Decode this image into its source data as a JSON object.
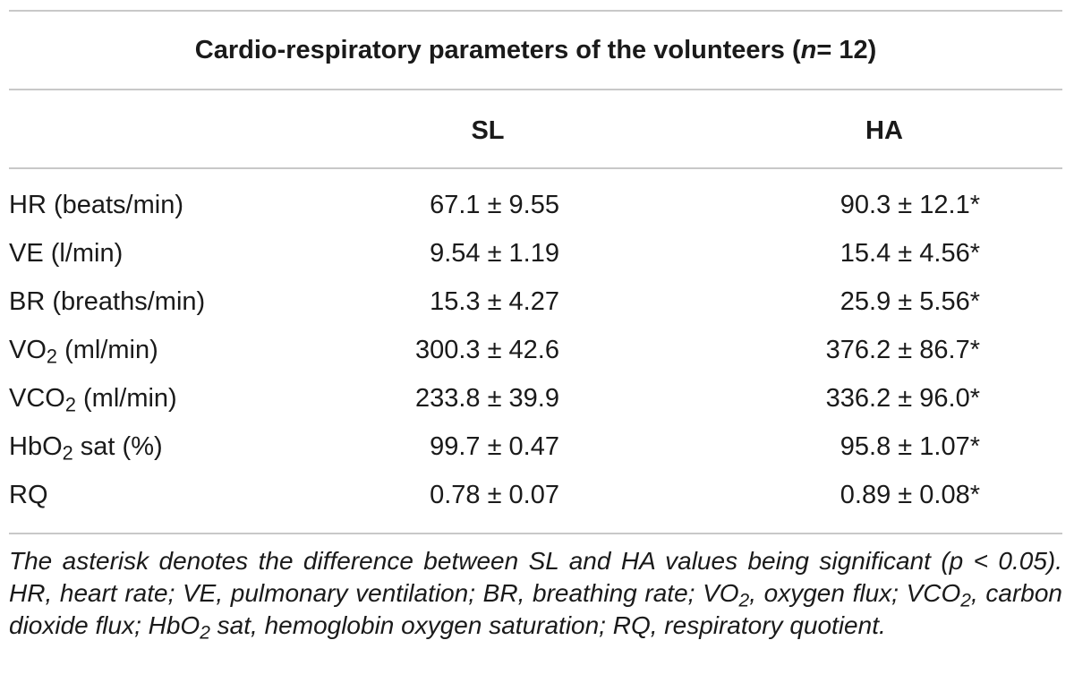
{
  "table": {
    "title": "Cardio-respiratory parameters of the volunteers (",
    "title_n": "n",
    "title_end": " = 12)",
    "columns": {
      "parameter": "",
      "sl": "SL",
      "ha": "HA"
    },
    "rows": [
      {
        "label_main": "HR (beats/min)",
        "label_sub": "",
        "label_rest": "",
        "sl": "67.1 ± 9.55",
        "ha": "90.3 ± 12.1*"
      },
      {
        "label_main": "VE (l/min)",
        "label_sub": "",
        "label_rest": "",
        "sl": "9.54 ± 1.19",
        "ha": "15.4 ± 4.56*"
      },
      {
        "label_main": "BR (breaths/min)",
        "label_sub": "",
        "label_rest": "",
        "sl": "15.3 ± 4.27",
        "ha": "25.9 ± 5.56*"
      },
      {
        "label_main": "VO",
        "label_sub": "2",
        "label_rest": " (ml/min)",
        "sl": "300.3 ± 42.6",
        "ha": "376.2 ± 86.7*"
      },
      {
        "label_main": "VCO",
        "label_sub": "2",
        "label_rest": " (ml/min)",
        "sl": "233.8 ± 39.9",
        "ha": "336.2 ± 96.0*"
      },
      {
        "label_main": "HbO",
        "label_sub": "2",
        "label_rest": " sat (%)",
        "sl": "99.7 ± 0.47",
        "ha": "95.8 ± 1.07*"
      },
      {
        "label_main": "RQ",
        "label_sub": "",
        "label_rest": "",
        "sl": "0.78 ± 0.07",
        "ha": "0.89 ± 0.08*"
      }
    ],
    "footnote": {
      "p1": "The asterisk denotes the difference between SL and HA values being significant (p < 0.05). HR, heart rate; VE, pulmonary ventilation; BR, breathing rate; VO",
      "s1": "2",
      "p2": ", oxygen flux; VCO",
      "s2": "2",
      "p3": ", carbon dioxide flux; HbO",
      "s3": "2",
      "p4": " sat, hemoglobin oxygen saturation; RQ, respiratory quotient."
    }
  }
}
